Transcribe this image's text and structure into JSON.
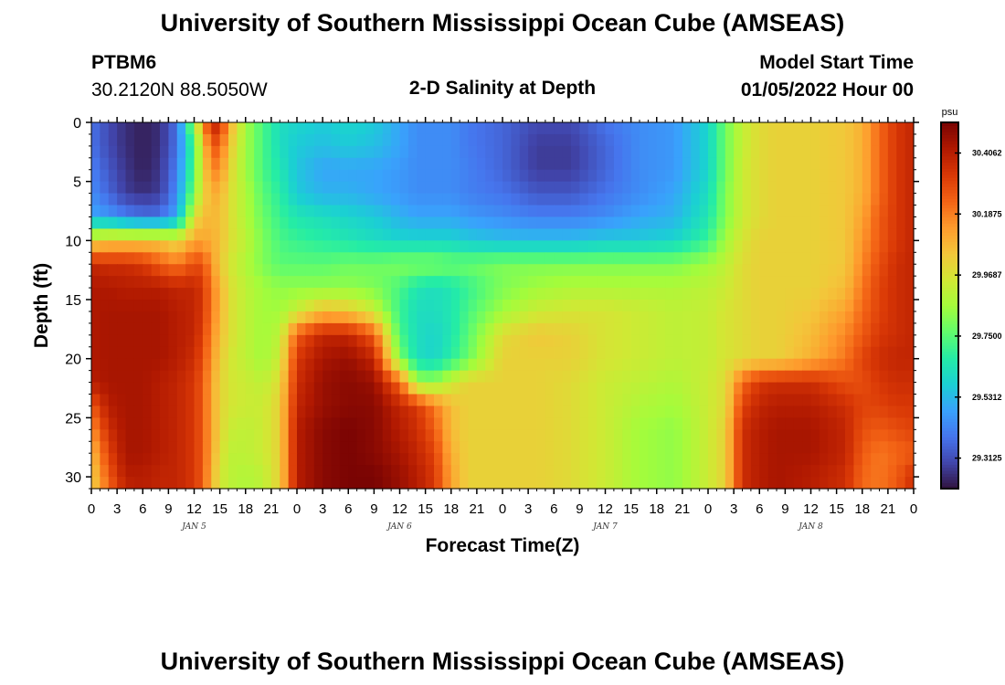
{
  "page": {
    "title": "University of Southern Mississippi Ocean Cube (AMSEAS)",
    "footer_title": "University of Southern Mississippi Ocean Cube (AMSEAS)",
    "station": "PTBM6",
    "coords": "30.2120N  88.5050W",
    "subtitle": "2-D Salinity at Depth",
    "model_start_label": "Model Start Time",
    "model_start_value": "01/05/2022 Hour 00"
  },
  "chart_data": {
    "type": "heatmap",
    "title": "2-D Salinity at Depth",
    "xlabel": "Forecast Time(Z)",
    "ylabel": "Depth (ft)",
    "x_tick_labels": [
      "0",
      "3",
      "6",
      "9",
      "12",
      "15",
      "18",
      "21",
      "0",
      "3",
      "6",
      "9",
      "12",
      "15",
      "18",
      "21",
      "0",
      "3",
      "6",
      "9",
      "12",
      "15",
      "18",
      "21",
      "0",
      "3",
      "6",
      "9",
      "12",
      "15",
      "18",
      "21",
      "0"
    ],
    "x_range_hours": [
      0,
      96
    ],
    "day_labels": [
      {
        "label": "JAN 5",
        "hour": 12
      },
      {
        "label": "JAN 6",
        "hour": 36
      },
      {
        "label": "JAN 7",
        "hour": 60
      },
      {
        "label": "JAN 8",
        "hour": 84
      }
    ],
    "y_ticks": [
      0,
      5,
      10,
      15,
      20,
      25,
      30
    ],
    "ylim": [
      0,
      31
    ],
    "y_inverted": true,
    "colorbar": {
      "unit": "psu",
      "range": [
        29.203,
        30.516
      ],
      "tick_values": [
        30.4062,
        30.1875,
        29.9687,
        29.75,
        29.5312,
        29.3125
      ],
      "tick_labels": [
        "30.4062",
        "30.1875",
        "29.9687",
        "29.7500",
        "29.5312",
        "29.3125"
      ],
      "colormap": [
        "#30123b",
        "#4145ab",
        "#4675ed",
        "#39a2fc",
        "#1bcfd4",
        "#24eca6",
        "#61fc6c",
        "#a4fc3b",
        "#d1e834",
        "#f3c63a",
        "#fe9b2d",
        "#f36315",
        "#d93806",
        "#b11901",
        "#7a0403"
      ]
    },
    "description_units": "normalized salinity level 0 (fresh, 29.20 psu) to 1 (salty, 30.52 psu)",
    "time_hours": [
      0,
      2,
      4,
      6,
      8,
      10,
      12,
      13,
      14,
      15,
      16,
      18,
      20,
      22,
      24,
      27,
      30,
      33,
      36,
      38,
      40,
      42,
      44,
      48,
      52,
      56,
      60,
      64,
      68,
      72,
      74,
      76,
      78,
      80,
      84,
      88,
      90,
      92,
      94,
      96
    ],
    "depths_ft": [
      0,
      2,
      4,
      6,
      8,
      10,
      12,
      14,
      16,
      18,
      20,
      22,
      24,
      26,
      28,
      30,
      31
    ],
    "levels": [
      [
        0.14,
        0.08,
        0.04,
        0.02,
        0.04,
        0.14,
        0.5,
        0.72,
        0.9,
        0.9,
        0.7,
        0.5,
        0.4,
        0.32,
        0.3,
        0.28,
        0.3,
        0.28,
        0.22,
        0.18,
        0.18,
        0.18,
        0.15,
        0.12,
        0.08,
        0.08,
        0.14,
        0.18,
        0.2,
        0.3,
        0.44,
        0.55,
        0.6,
        0.62,
        0.62,
        0.64,
        0.68,
        0.78,
        0.86,
        0.9
      ],
      [
        0.14,
        0.08,
        0.04,
        0.02,
        0.04,
        0.14,
        0.4,
        0.62,
        0.8,
        0.8,
        0.65,
        0.5,
        0.4,
        0.32,
        0.28,
        0.26,
        0.28,
        0.26,
        0.22,
        0.18,
        0.18,
        0.18,
        0.15,
        0.12,
        0.06,
        0.06,
        0.12,
        0.18,
        0.2,
        0.3,
        0.44,
        0.55,
        0.6,
        0.62,
        0.62,
        0.64,
        0.68,
        0.78,
        0.86,
        0.9
      ],
      [
        0.16,
        0.1,
        0.05,
        0.02,
        0.05,
        0.16,
        0.42,
        0.6,
        0.74,
        0.74,
        0.62,
        0.5,
        0.4,
        0.34,
        0.27,
        0.22,
        0.22,
        0.22,
        0.2,
        0.18,
        0.18,
        0.18,
        0.16,
        0.12,
        0.06,
        0.06,
        0.12,
        0.18,
        0.2,
        0.3,
        0.44,
        0.56,
        0.6,
        0.62,
        0.62,
        0.64,
        0.68,
        0.78,
        0.86,
        0.9
      ],
      [
        0.18,
        0.12,
        0.06,
        0.04,
        0.06,
        0.18,
        0.46,
        0.6,
        0.68,
        0.68,
        0.6,
        0.52,
        0.42,
        0.36,
        0.28,
        0.24,
        0.24,
        0.22,
        0.2,
        0.18,
        0.18,
        0.18,
        0.16,
        0.14,
        0.1,
        0.1,
        0.14,
        0.18,
        0.22,
        0.32,
        0.46,
        0.56,
        0.6,
        0.62,
        0.62,
        0.64,
        0.68,
        0.78,
        0.86,
        0.9
      ],
      [
        0.22,
        0.2,
        0.16,
        0.14,
        0.14,
        0.22,
        0.58,
        0.66,
        0.66,
        0.66,
        0.6,
        0.52,
        0.44,
        0.38,
        0.34,
        0.32,
        0.3,
        0.28,
        0.24,
        0.22,
        0.22,
        0.22,
        0.2,
        0.18,
        0.16,
        0.16,
        0.18,
        0.22,
        0.24,
        0.34,
        0.46,
        0.56,
        0.6,
        0.62,
        0.62,
        0.64,
        0.7,
        0.8,
        0.86,
        0.9
      ],
      [
        0.6,
        0.64,
        0.64,
        0.64,
        0.64,
        0.6,
        0.7,
        0.7,
        0.68,
        0.66,
        0.6,
        0.54,
        0.46,
        0.4,
        0.38,
        0.36,
        0.34,
        0.32,
        0.3,
        0.3,
        0.3,
        0.3,
        0.28,
        0.26,
        0.26,
        0.26,
        0.28,
        0.28,
        0.3,
        0.38,
        0.5,
        0.58,
        0.62,
        0.62,
        0.62,
        0.64,
        0.72,
        0.8,
        0.86,
        0.9
      ],
      [
        0.9,
        0.88,
        0.88,
        0.86,
        0.8,
        0.76,
        0.82,
        0.82,
        0.72,
        0.64,
        0.58,
        0.52,
        0.46,
        0.42,
        0.42,
        0.42,
        0.44,
        0.44,
        0.46,
        0.46,
        0.46,
        0.44,
        0.44,
        0.46,
        0.46,
        0.46,
        0.46,
        0.46,
        0.46,
        0.5,
        0.54,
        0.6,
        0.62,
        0.62,
        0.62,
        0.64,
        0.74,
        0.82,
        0.88,
        0.9
      ],
      [
        0.93,
        0.93,
        0.92,
        0.92,
        0.92,
        0.9,
        0.9,
        0.86,
        0.76,
        0.68,
        0.6,
        0.54,
        0.5,
        0.48,
        0.48,
        0.48,
        0.48,
        0.46,
        0.4,
        0.34,
        0.32,
        0.34,
        0.38,
        0.46,
        0.5,
        0.52,
        0.52,
        0.52,
        0.52,
        0.54,
        0.56,
        0.6,
        0.62,
        0.62,
        0.62,
        0.66,
        0.76,
        0.84,
        0.88,
        0.9
      ],
      [
        0.93,
        0.94,
        0.94,
        0.94,
        0.94,
        0.92,
        0.9,
        0.86,
        0.76,
        0.68,
        0.6,
        0.54,
        0.5,
        0.5,
        0.56,
        0.66,
        0.64,
        0.56,
        0.38,
        0.32,
        0.32,
        0.34,
        0.4,
        0.5,
        0.56,
        0.58,
        0.58,
        0.56,
        0.54,
        0.55,
        0.58,
        0.6,
        0.62,
        0.62,
        0.64,
        0.7,
        0.78,
        0.84,
        0.88,
        0.9
      ],
      [
        0.93,
        0.94,
        0.94,
        0.94,
        0.94,
        0.92,
        0.9,
        0.84,
        0.74,
        0.66,
        0.6,
        0.54,
        0.5,
        0.54,
        0.8,
        0.9,
        0.9,
        0.8,
        0.4,
        0.32,
        0.3,
        0.34,
        0.42,
        0.6,
        0.64,
        0.62,
        0.58,
        0.56,
        0.54,
        0.55,
        0.58,
        0.6,
        0.62,
        0.62,
        0.66,
        0.74,
        0.8,
        0.86,
        0.88,
        0.9
      ],
      [
        0.93,
        0.94,
        0.94,
        0.94,
        0.94,
        0.92,
        0.88,
        0.82,
        0.72,
        0.64,
        0.58,
        0.54,
        0.5,
        0.56,
        0.86,
        0.94,
        0.96,
        0.9,
        0.46,
        0.32,
        0.3,
        0.36,
        0.44,
        0.62,
        0.62,
        0.62,
        0.58,
        0.56,
        0.54,
        0.55,
        0.58,
        0.6,
        0.62,
        0.62,
        0.68,
        0.76,
        0.84,
        0.88,
        0.9,
        0.9
      ],
      [
        0.92,
        0.94,
        0.94,
        0.94,
        0.92,
        0.9,
        0.86,
        0.8,
        0.7,
        0.62,
        0.58,
        0.56,
        0.54,
        0.6,
        0.88,
        0.96,
        0.98,
        0.96,
        0.78,
        0.5,
        0.48,
        0.56,
        0.62,
        0.62,
        0.62,
        0.6,
        0.56,
        0.54,
        0.52,
        0.56,
        0.6,
        0.78,
        0.86,
        0.88,
        0.88,
        0.82,
        0.82,
        0.86,
        0.88,
        0.88
      ],
      [
        0.8,
        0.92,
        0.94,
        0.94,
        0.92,
        0.9,
        0.86,
        0.8,
        0.7,
        0.62,
        0.58,
        0.56,
        0.56,
        0.62,
        0.9,
        0.96,
        0.98,
        0.98,
        0.9,
        0.86,
        0.76,
        0.66,
        0.62,
        0.62,
        0.62,
        0.6,
        0.56,
        0.52,
        0.5,
        0.56,
        0.6,
        0.84,
        0.9,
        0.92,
        0.92,
        0.88,
        0.84,
        0.84,
        0.86,
        0.86
      ],
      [
        0.72,
        0.88,
        0.94,
        0.94,
        0.92,
        0.9,
        0.86,
        0.8,
        0.7,
        0.62,
        0.56,
        0.54,
        0.56,
        0.62,
        0.92,
        0.98,
        1.0,
        0.98,
        0.92,
        0.88,
        0.8,
        0.66,
        0.62,
        0.62,
        0.62,
        0.6,
        0.56,
        0.5,
        0.48,
        0.56,
        0.62,
        0.88,
        0.92,
        0.94,
        0.94,
        0.9,
        0.82,
        0.8,
        0.82,
        0.84
      ],
      [
        0.66,
        0.84,
        0.94,
        0.94,
        0.92,
        0.9,
        0.86,
        0.8,
        0.7,
        0.6,
        0.54,
        0.54,
        0.56,
        0.62,
        0.92,
        0.98,
        1.0,
        0.98,
        0.94,
        0.9,
        0.84,
        0.68,
        0.62,
        0.62,
        0.62,
        0.6,
        0.56,
        0.5,
        0.48,
        0.56,
        0.62,
        0.88,
        0.92,
        0.94,
        0.94,
        0.9,
        0.8,
        0.76,
        0.78,
        0.8
      ],
      [
        0.62,
        0.8,
        0.92,
        0.92,
        0.9,
        0.9,
        0.86,
        0.8,
        0.68,
        0.58,
        0.54,
        0.52,
        0.54,
        0.62,
        0.92,
        0.98,
        1.0,
        1.0,
        0.96,
        0.92,
        0.86,
        0.7,
        0.62,
        0.62,
        0.62,
        0.6,
        0.56,
        0.5,
        0.48,
        0.56,
        0.62,
        0.88,
        0.92,
        0.94,
        0.92,
        0.88,
        0.78,
        0.76,
        0.8,
        0.88
      ],
      [
        0.62,
        0.78,
        0.9,
        0.92,
        0.9,
        0.9,
        0.86,
        0.8,
        0.68,
        0.58,
        0.54,
        0.52,
        0.54,
        0.62,
        0.92,
        0.98,
        1.0,
        1.0,
        0.96,
        0.92,
        0.86,
        0.7,
        0.62,
        0.62,
        0.62,
        0.6,
        0.56,
        0.5,
        0.48,
        0.56,
        0.62,
        0.88,
        0.92,
        0.94,
        0.92,
        0.88,
        0.78,
        0.76,
        0.8,
        0.88
      ]
    ]
  }
}
